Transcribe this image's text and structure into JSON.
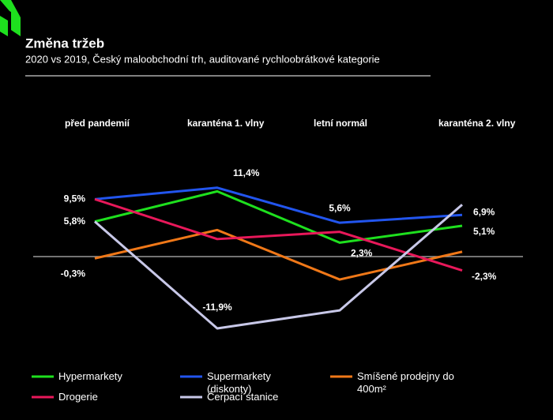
{
  "chart_data": {
    "type": "line",
    "title": "Změna tržeb",
    "subtitle": "2020 vs 2019, Český maloobchodní trh, auditované rychloobrátkové kategorie",
    "categories": [
      "před pandemií",
      "karanténa 1. vlny",
      "letní normál",
      "karanténa 2. vlny"
    ],
    "ylim": [
      -14,
      16
    ],
    "series": [
      {
        "name": "Hypermarkety",
        "color": "#1ee01e",
        "values": [
          5.8,
          10.8,
          2.3,
          5.1
        ],
        "value_labels": [
          "5,8%",
          null,
          "2,3%",
          "5,1%"
        ]
      },
      {
        "name": "Supermarkety (diskonty)",
        "color": "#2255ee",
        "values": [
          9.5,
          11.4,
          5.6,
          6.9
        ],
        "value_labels": [
          "9,5%",
          "11,4%",
          "5,6%",
          "6,9%"
        ]
      },
      {
        "name": "Smíšené prodejny do 400m²",
        "color": "#f07818",
        "values": [
          -0.3,
          4.4,
          -3.8,
          0.8
        ],
        "value_labels": [
          "-0,3%",
          null,
          null,
          null
        ]
      },
      {
        "name": "Drogerie",
        "color": "#e8185a",
        "values": [
          9.5,
          2.9,
          4.1,
          -2.3
        ],
        "value_labels": [
          null,
          null,
          null,
          "-2,3%"
        ]
      },
      {
        "name": "Čerpací stanice",
        "color": "#c8c8e8",
        "values": [
          5.8,
          -11.9,
          -8.9,
          8.6
        ],
        "value_labels": [
          null,
          "-11,9%",
          null,
          null
        ]
      }
    ]
  }
}
